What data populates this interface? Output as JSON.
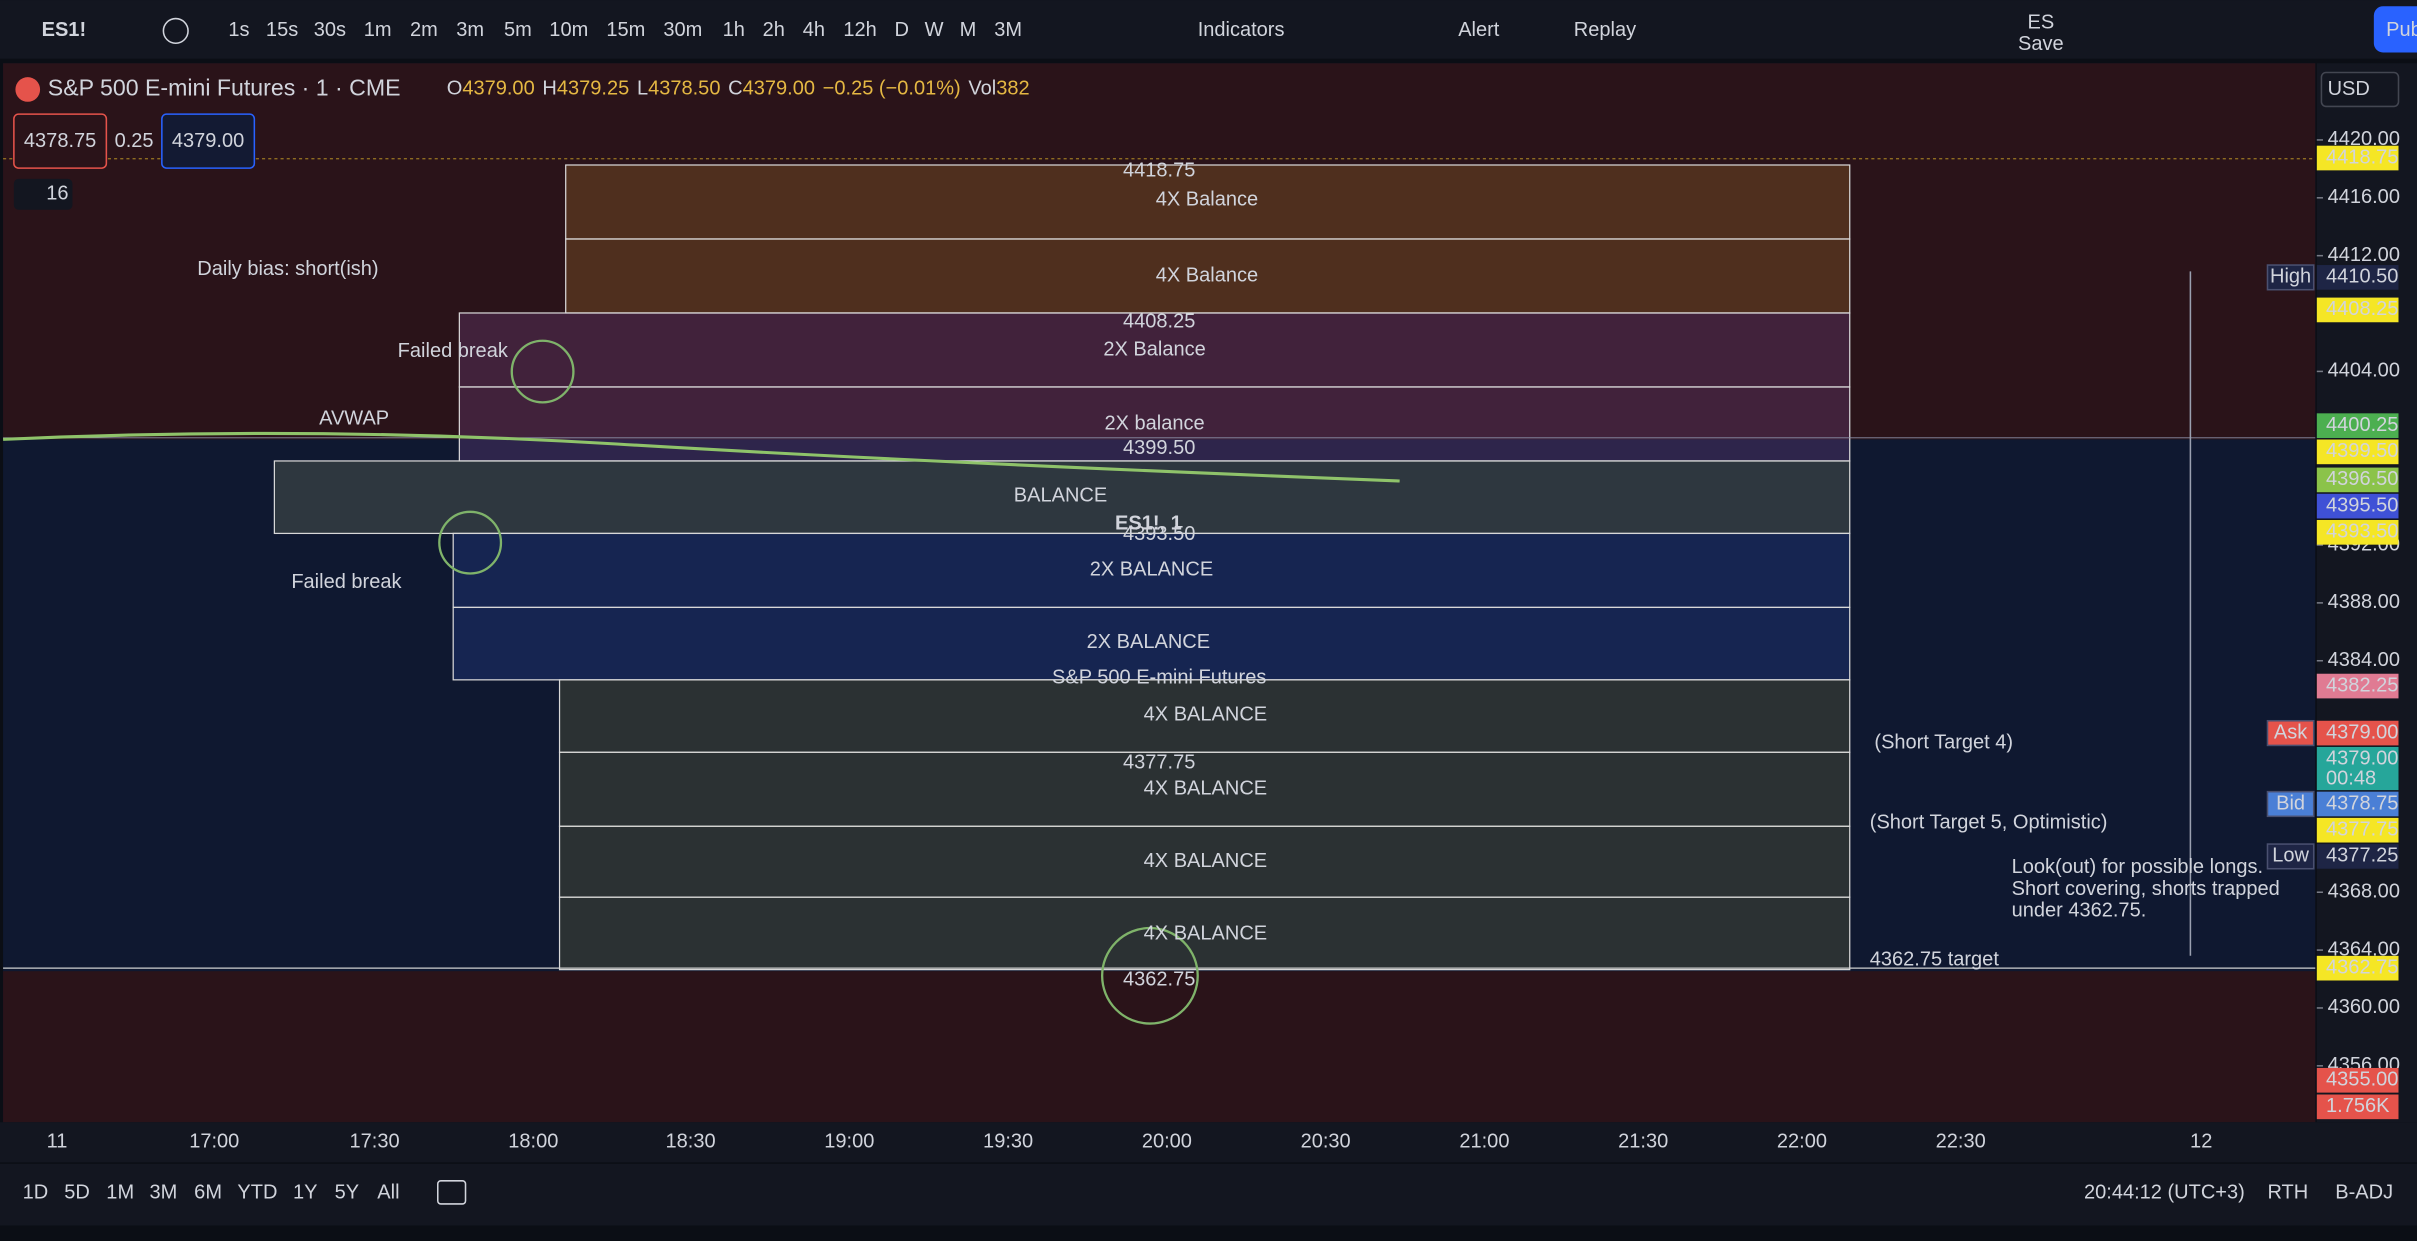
{
  "toolbar": {
    "symbol": "ES1!",
    "intervals": [
      "1s",
      "15s",
      "30s",
      "1m",
      "2m",
      "3m",
      "5m",
      "10m",
      "15m",
      "30m",
      "1h",
      "2h",
      "4h",
      "12h",
      "D",
      "W",
      "M",
      "3M"
    ],
    "active_interval": "1m",
    "indicators": "Indicators",
    "alert": "Alert",
    "replay": "Replay",
    "layout_name": "ES",
    "save": "Save",
    "publish": "Pub"
  },
  "legend": {
    "title": "S&P 500 E-mini Futures · 1 · CME",
    "open_label": "O",
    "open": "4379.00",
    "high_label": "H",
    "high": "4379.25",
    "low_label": "L",
    "low": "4378.50",
    "close_label": "C",
    "close": "4379.00",
    "change": "−0.25 (−0.01%)",
    "volume_label": "Vol",
    "volume": "382",
    "sell": "4378.75",
    "spread": "0.25",
    "buy": "4379.00",
    "indicator_count": "16"
  },
  "watermark": {
    "symbol": "ES1!, 1",
    "name": "S&P 500 E-mini Futures"
  },
  "zone_labels": [
    "4X Balance",
    "4X Balance",
    "2X Balance",
    "2X balance",
    "BALANCE",
    "2X BALANCE",
    "2X BALANCE",
    "4X BALANCE",
    "4X BALANCE",
    "4X BALANCE",
    "4X BALANCE"
  ],
  "level_labels": [
    "4418.75",
    "4408.25",
    "4399.50",
    "4393.50",
    "4377.75",
    "4362.75"
  ],
  "annotations": {
    "bias": "Daily bias: short(ish)",
    "failed_break_top": "Failed break",
    "failed_break_bottom": "Failed break",
    "avwap": "AVWAP",
    "target4": "(Short Target 4)",
    "target5": "(Short Target 5, Optimistic)",
    "target_final": "4362.75 target",
    "note": [
      "Look(out) for possible longs.",
      "Short covering, shorts trapped",
      "under 4362.75."
    ]
  },
  "price_axis": {
    "currency": "USD",
    "ylim": [
      4352.1,
      4425.3
    ],
    "ticks": [
      {
        "value": 4420,
        "label": "4420.00"
      },
      {
        "value": 4416,
        "label": "4416.00"
      },
      {
        "value": 4412,
        "label": "4412.00"
      },
      {
        "value": 4404,
        "label": "4404.00"
      },
      {
        "value": 4392,
        "label": "4392.00"
      },
      {
        "value": 4388,
        "label": "4388.00"
      },
      {
        "value": 4384,
        "label": "4384.00"
      },
      {
        "value": 4368,
        "label": "4368.00"
      },
      {
        "value": 4364,
        "label": "4364.00"
      },
      {
        "value": 4360,
        "label": "4360.00"
      },
      {
        "value": 4356,
        "label": "4356.00"
      }
    ],
    "tags": [
      {
        "value": 4418.75,
        "label": "4418.75",
        "color": "#f5e625"
      },
      {
        "name": "High",
        "value": 4410.5,
        "label": "4410.50",
        "color": "#1e2545"
      },
      {
        "value": 4408.25,
        "label": "4408.25",
        "color": "#f5e625"
      },
      {
        "value": 4400.25,
        "label": "4400.25",
        "color": "#4caf50"
      },
      {
        "value": 4399.5,
        "label": "4399.50",
        "color": "#f5e625"
      },
      {
        "value": 4396.5,
        "label": "4396.50",
        "color": "#8bc34a"
      },
      {
        "value": 4395.5,
        "label": "4395.50",
        "color": "#3f51d6"
      },
      {
        "value": 4393.5,
        "label": "4393.50",
        "color": "#f5e625"
      },
      {
        "value": 4382.25,
        "label": "4382.25",
        "color": "#e07b93"
      },
      {
        "name": "Ask",
        "value": 4379,
        "label": "4379.00",
        "color": "#e5534b"
      },
      {
        "value": 4379,
        "label": "4379.00",
        "countdown": "00:48",
        "color": "#26a69a"
      },
      {
        "name": "Bid",
        "value": 4378.75,
        "label": "4378.75",
        "color": "#4a7fd6"
      },
      {
        "value": 4377.75,
        "label": "4377.75",
        "color": "#f5e625"
      },
      {
        "name": "Low",
        "value": 4377.25,
        "label": "4377.25",
        "color": "#1e2545"
      },
      {
        "value": 4362.75,
        "label": "4362.75",
        "color": "#f5e625"
      },
      {
        "value": 4355,
        "label": "4355.00",
        "color": "#e5534b"
      }
    ],
    "volume_tag": "1.756K"
  },
  "time_axis": {
    "labels": [
      "11",
      "17:00",
      "17:30",
      "18:00",
      "18:30",
      "19:00",
      "19:30",
      "20:00",
      "20:30",
      "21:00",
      "21:30",
      "22:00",
      "22:30",
      "12"
    ]
  },
  "bottom_bar": {
    "ranges": [
      "1D",
      "5D",
      "1M",
      "3M",
      "6M",
      "YTD",
      "1Y",
      "5Y",
      "All"
    ],
    "clock": "20:44:12 (UTC+3)",
    "session": "RTH",
    "adjustment": "B-ADJ"
  }
}
